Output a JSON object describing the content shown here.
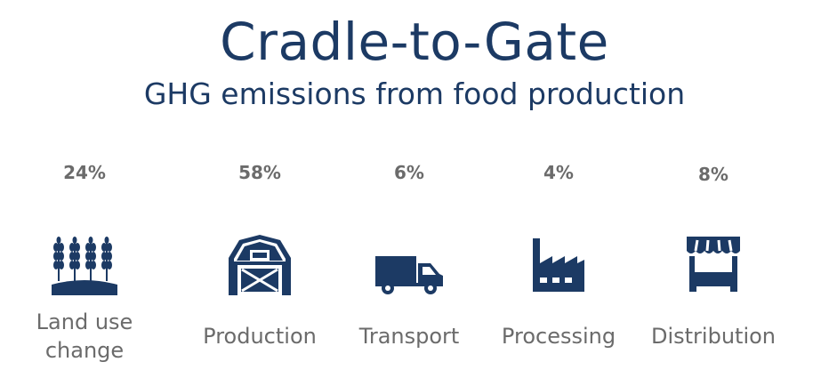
{
  "header": {
    "title": "Cradle-to-Gate",
    "subtitle": "GHG emissions from food production"
  },
  "colors": {
    "title": "#1c3a64",
    "icon": "#1c3a64",
    "text": "#6b6b6b"
  },
  "stages": [
    {
      "percent": "24%",
      "label_line1": "Land use",
      "label_line2": "change",
      "icon": "wheat-icon",
      "share": 24
    },
    {
      "percent": "58%",
      "label": "Production",
      "icon": "barn-icon",
      "share": 58
    },
    {
      "percent": "6%",
      "label": "Transport",
      "icon": "truck-icon",
      "share": 6
    },
    {
      "percent": "4%",
      "label": "Processing",
      "icon": "factory-icon",
      "share": 4
    },
    {
      "percent": "8%",
      "label": "Distribution",
      "icon": "store-icon",
      "share": 8
    }
  ]
}
